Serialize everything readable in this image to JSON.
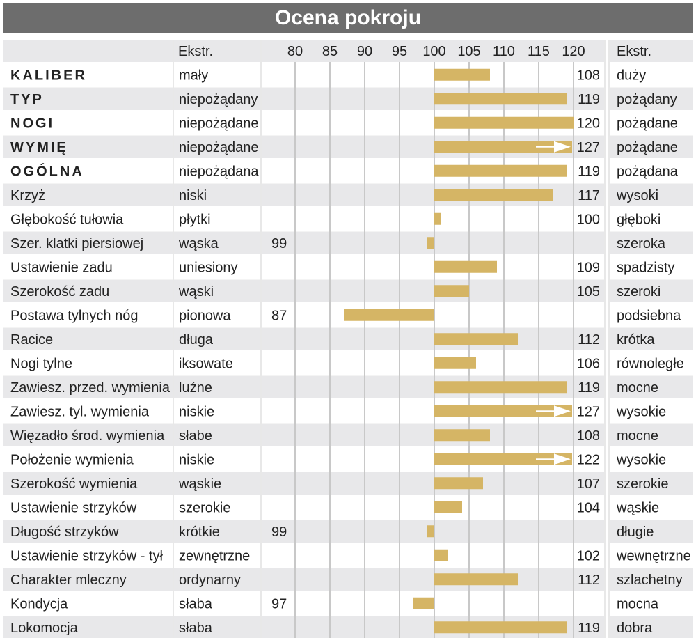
{
  "chart_data": {
    "type": "bar",
    "title": "Ocena pokroju",
    "header": {
      "left_extreme": "Ekstr.",
      "right_extreme": "Ekstr."
    },
    "axis": {
      "ticks": [
        80,
        85,
        90,
        95,
        100,
        105,
        110,
        115,
        120
      ],
      "min": 78,
      "max": 123,
      "baseline": 100,
      "grid": true
    },
    "colors": {
      "bar": "#d5b565",
      "band": "#e8e8ea",
      "grid": "#c8c8c8",
      "title_bg": "#6d6d6d"
    },
    "rows": [
      {
        "trait": "KALIBER",
        "bold": true,
        "low": "mały",
        "value": 108,
        "high": "duży"
      },
      {
        "trait": "TYP",
        "bold": true,
        "low": "niepożądany",
        "value": 119,
        "high": "pożądany"
      },
      {
        "trait": "NOGI",
        "bold": true,
        "low": "niepożądane",
        "value": 120,
        "high": "pożądane"
      },
      {
        "trait": "WYMIĘ",
        "bold": true,
        "low": "niepożądane",
        "value": 127,
        "high": "pożądane",
        "arrow": true
      },
      {
        "trait": "OGÓLNA",
        "bold": true,
        "low": "niepożądana",
        "value": 119,
        "high": "pożądana"
      },
      {
        "trait": "Krzyż",
        "low": "niski",
        "value": 117,
        "high": "wysoki"
      },
      {
        "trait": "Głębokość tułowia",
        "low": "płytki",
        "value": 100,
        "high": "głęboki"
      },
      {
        "trait": "Szer. klatki piersiowej",
        "low": "wąska",
        "value": 99,
        "high": "szeroka"
      },
      {
        "trait": "Ustawienie zadu",
        "low": "uniesiony",
        "value": 109,
        "high": "spadzisty"
      },
      {
        "trait": "Szerokość zadu",
        "low": "wąski",
        "value": 105,
        "high": "szeroki"
      },
      {
        "trait": "Postawa tylnych nóg",
        "low": "pionowa",
        "value": 87,
        "high": "podsiebna"
      },
      {
        "trait": "Racice",
        "low": "długa",
        "value": 112,
        "high": "krótka"
      },
      {
        "trait": "Nogi tylne",
        "low": "iksowate",
        "value": 106,
        "high": "równoległe"
      },
      {
        "trait": "Zawiesz. przed. wymienia",
        "low": "luźne",
        "value": 119,
        "high": "mocne"
      },
      {
        "trait": "Zawiesz. tyl. wymienia",
        "low": "niskie",
        "value": 127,
        "high": "wysokie",
        "arrow": true
      },
      {
        "trait": "Więzadło środ. wymienia",
        "low": "słabe",
        "value": 108,
        "high": "mocne"
      },
      {
        "trait": "Położenie wymienia",
        "low": "niskie",
        "value": 122,
        "high": "wysokie",
        "arrow": true
      },
      {
        "trait": "Szerokość wymienia",
        "low": "wąskie",
        "value": 107,
        "high": "szerokie"
      },
      {
        "trait": "Ustawienie strzyków",
        "low": "szerokie",
        "value": 104,
        "high": "wąskie"
      },
      {
        "trait": "Długość strzyków",
        "low": "krótkie",
        "value": 99,
        "high": "długie"
      },
      {
        "trait": "Ustawienie strzyków - tył",
        "low": "zewnętrzne",
        "value": 102,
        "high": "wewnętrzne"
      },
      {
        "trait": "Charakter mleczny",
        "low": "ordynarny",
        "value": 112,
        "high": "szlachetny"
      },
      {
        "trait": "Kondycja",
        "low": "słaba",
        "value": 97,
        "high": "mocna"
      },
      {
        "trait": "Lokomocja",
        "low": "słaba",
        "value": 119,
        "high": "dobra"
      }
    ]
  }
}
